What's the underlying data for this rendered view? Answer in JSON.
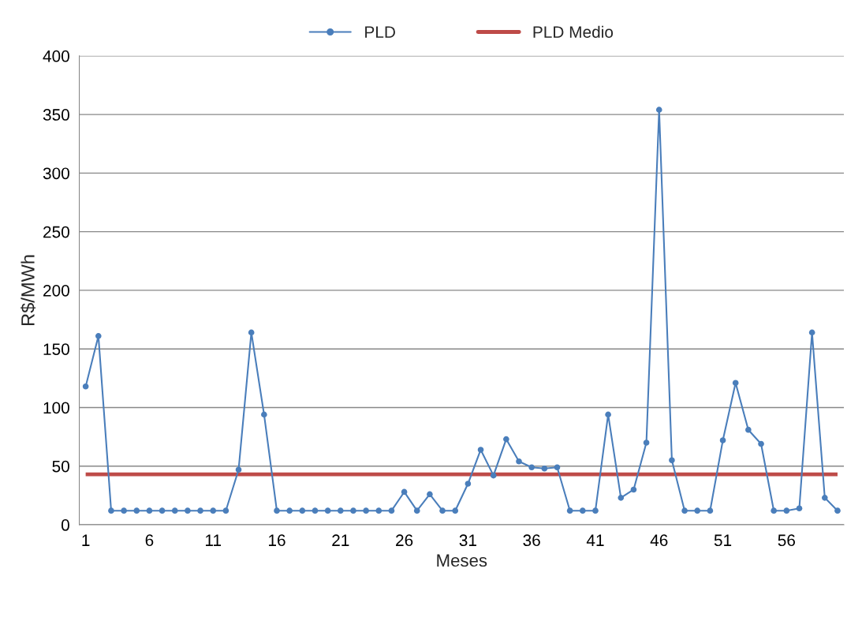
{
  "chart_data": {
    "type": "line",
    "xlabel": "Meses",
    "ylabel": "R$/MWh",
    "x": [
      1,
      2,
      3,
      4,
      5,
      6,
      7,
      8,
      9,
      10,
      11,
      12,
      13,
      14,
      15,
      16,
      17,
      18,
      19,
      20,
      21,
      22,
      23,
      24,
      25,
      26,
      27,
      28,
      29,
      30,
      31,
      32,
      33,
      34,
      35,
      36,
      37,
      38,
      39,
      40,
      41,
      42,
      43,
      44,
      45,
      46,
      47,
      48,
      49,
      50,
      51,
      52,
      53,
      54,
      55,
      56,
      57,
      58,
      59,
      60
    ],
    "series": [
      {
        "name": "PLD",
        "color": "#4a7ebb",
        "values": [
          118,
          161,
          12,
          12,
          12,
          12,
          12,
          12,
          12,
          12,
          12,
          12,
          47,
          164,
          94,
          12,
          12,
          12,
          12,
          12,
          12,
          12,
          12,
          12,
          12,
          28,
          12,
          26,
          12,
          12,
          35,
          64,
          42,
          73,
          54,
          49,
          48,
          49,
          12,
          12,
          12,
          94,
          23,
          30,
          70,
          354,
          55,
          12,
          12,
          12,
          72,
          121,
          81,
          69,
          12,
          12,
          14,
          164,
          23,
          12
        ]
      }
    ],
    "ref_lines": [
      {
        "axis": "y",
        "value": 43,
        "label": "PLD Medio",
        "color": "#be4b48"
      }
    ],
    "xlim": [
      0.5,
      60.5
    ],
    "xticks": [
      1,
      6,
      11,
      16,
      21,
      26,
      31,
      36,
      41,
      46,
      51,
      56
    ],
    "ylim": [
      0,
      400
    ],
    "yticks": [
      0,
      50,
      100,
      150,
      200,
      250,
      300,
      350,
      400
    ],
    "grid": "y",
    "legend": "top",
    "marker": "circle",
    "line_style": "solid"
  }
}
